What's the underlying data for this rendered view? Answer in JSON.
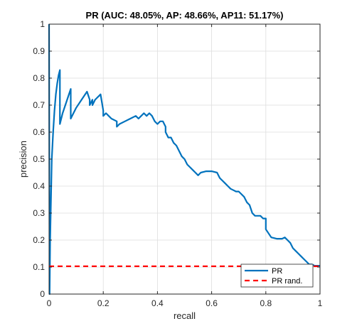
{
  "chart_data": {
    "type": "line",
    "title": "PR (AUC: 48.05%, AP: 48.66%, AP11: 51.17%)",
    "xlabel": "recall",
    "ylabel": "precision",
    "xlim": [
      0,
      1
    ],
    "ylim": [
      0,
      1
    ],
    "xticks": [
      "0",
      "0.2",
      "0.4",
      "0.6",
      "0.8",
      "1"
    ],
    "yticks": [
      "0",
      "0.1",
      "0.2",
      "0.3",
      "0.4",
      "0.5",
      "0.6",
      "0.7",
      "0.8",
      "0.9",
      "1"
    ],
    "grid": true,
    "legend_position": "bottom-right",
    "series": [
      {
        "name": "PR",
        "color": "#0072BD",
        "style": "solid",
        "x": [
          0,
          0.002,
          0.004,
          0.007,
          0.01,
          0.015,
          0.02,
          0.025,
          0.03,
          0.035,
          0.04,
          0.04,
          0.05,
          0.06,
          0.07,
          0.08,
          0.08,
          0.09,
          0.095,
          0.1,
          0.12,
          0.14,
          0.15,
          0.15,
          0.16,
          0.16,
          0.17,
          0.19,
          0.2,
          0.2,
          0.21,
          0.22,
          0.23,
          0.25,
          0.25,
          0.26,
          0.28,
          0.3,
          0.32,
          0.33,
          0.34,
          0.35,
          0.36,
          0.37,
          0.38,
          0.39,
          0.4,
          0.41,
          0.42,
          0.43,
          0.43,
          0.44,
          0.45,
          0.46,
          0.47,
          0.48,
          0.49,
          0.5,
          0.51,
          0.52,
          0.53,
          0.54,
          0.55,
          0.56,
          0.58,
          0.6,
          0.62,
          0.63,
          0.64,
          0.65,
          0.66,
          0.67,
          0.68,
          0.69,
          0.7,
          0.71,
          0.72,
          0.73,
          0.74,
          0.75,
          0.76,
          0.78,
          0.79,
          0.8,
          0.8,
          0.82,
          0.84,
          0.86,
          0.87,
          0.88,
          0.89,
          0.9,
          0.91,
          0.92,
          0.93,
          0.94,
          0.95,
          0.96,
          0.97,
          0.98,
          0.99,
          1.0
        ],
        "y": [
          1.0,
          0.0,
          0.2,
          0.35,
          0.5,
          0.6,
          0.68,
          0.74,
          0.78,
          0.81,
          0.83,
          0.63,
          0.67,
          0.7,
          0.73,
          0.76,
          0.65,
          0.67,
          0.68,
          0.69,
          0.72,
          0.75,
          0.72,
          0.7,
          0.72,
          0.7,
          0.72,
          0.74,
          0.68,
          0.66,
          0.67,
          0.66,
          0.65,
          0.64,
          0.62,
          0.63,
          0.64,
          0.65,
          0.66,
          0.65,
          0.66,
          0.67,
          0.66,
          0.67,
          0.66,
          0.64,
          0.63,
          0.64,
          0.64,
          0.62,
          0.6,
          0.58,
          0.58,
          0.56,
          0.55,
          0.53,
          0.51,
          0.5,
          0.48,
          0.47,
          0.46,
          0.45,
          0.44,
          0.45,
          0.455,
          0.455,
          0.45,
          0.43,
          0.42,
          0.41,
          0.4,
          0.39,
          0.385,
          0.38,
          0.38,
          0.37,
          0.36,
          0.34,
          0.33,
          0.3,
          0.29,
          0.29,
          0.28,
          0.28,
          0.24,
          0.21,
          0.205,
          0.205,
          0.21,
          0.2,
          0.19,
          0.17,
          0.16,
          0.15,
          0.14,
          0.13,
          0.12,
          0.11,
          0.11,
          0.105,
          0.105,
          0.105
        ]
      },
      {
        "name": "PR rand.",
        "color": "#FF0000",
        "style": "dashed",
        "x": [
          0,
          1
        ],
        "y": [
          0.103,
          0.103
        ]
      }
    ]
  }
}
